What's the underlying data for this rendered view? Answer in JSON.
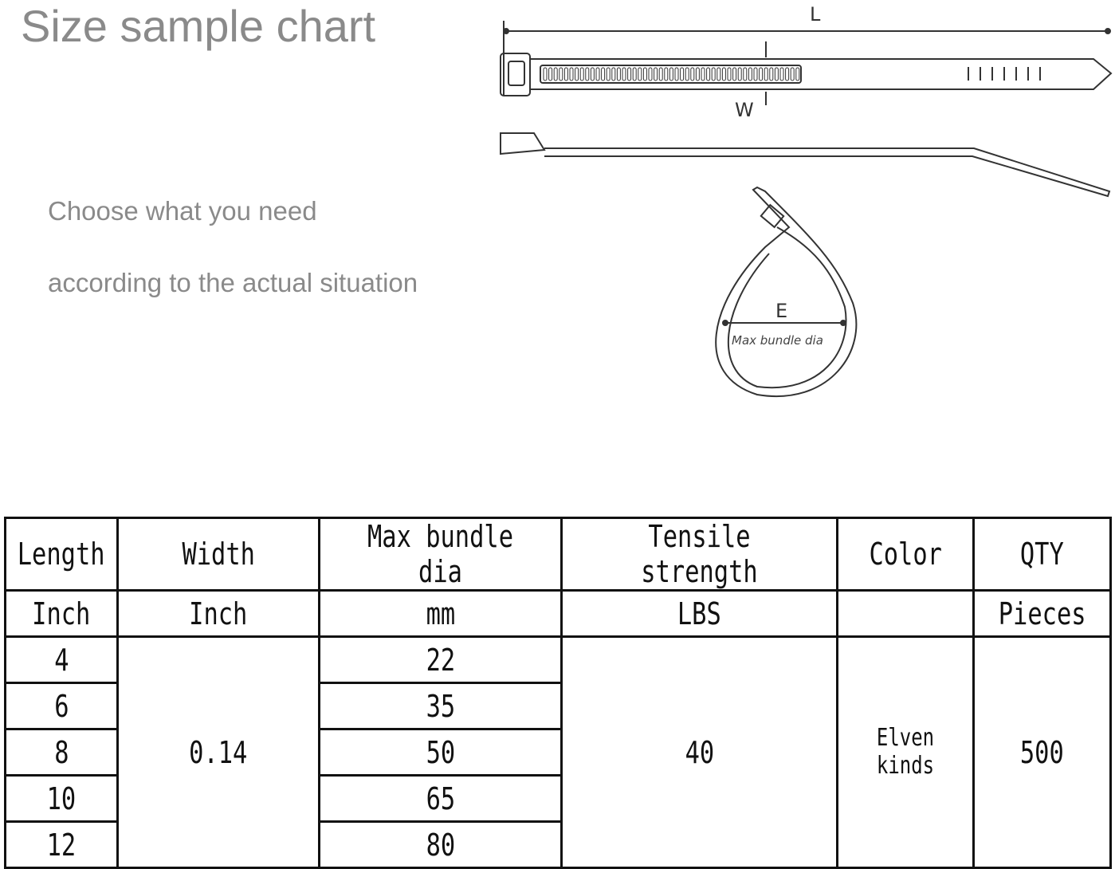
{
  "header": {
    "title": "Size sample chart",
    "line1": "Choose what you need",
    "line2": "according to the actual situation"
  },
  "diagram": {
    "length_label": "L",
    "width_label": "W",
    "diameter_label": "E",
    "diameter_caption": "Max bundle dia"
  },
  "table": {
    "headers": [
      "Length",
      "Width",
      "Max bundle dia",
      "Tensile strength",
      "Color",
      "QTY"
    ],
    "units": [
      "Inch",
      "Inch",
      "mm",
      "LBS",
      "",
      "Pieces"
    ],
    "lengths": [
      "4",
      "6",
      "8",
      "10",
      "12"
    ],
    "width": "0.14",
    "max_bundle_dia": [
      "22",
      "35",
      "50",
      "65",
      "80"
    ],
    "tensile_strength": "40",
    "color": "Elven kinds",
    "qty": "500"
  }
}
